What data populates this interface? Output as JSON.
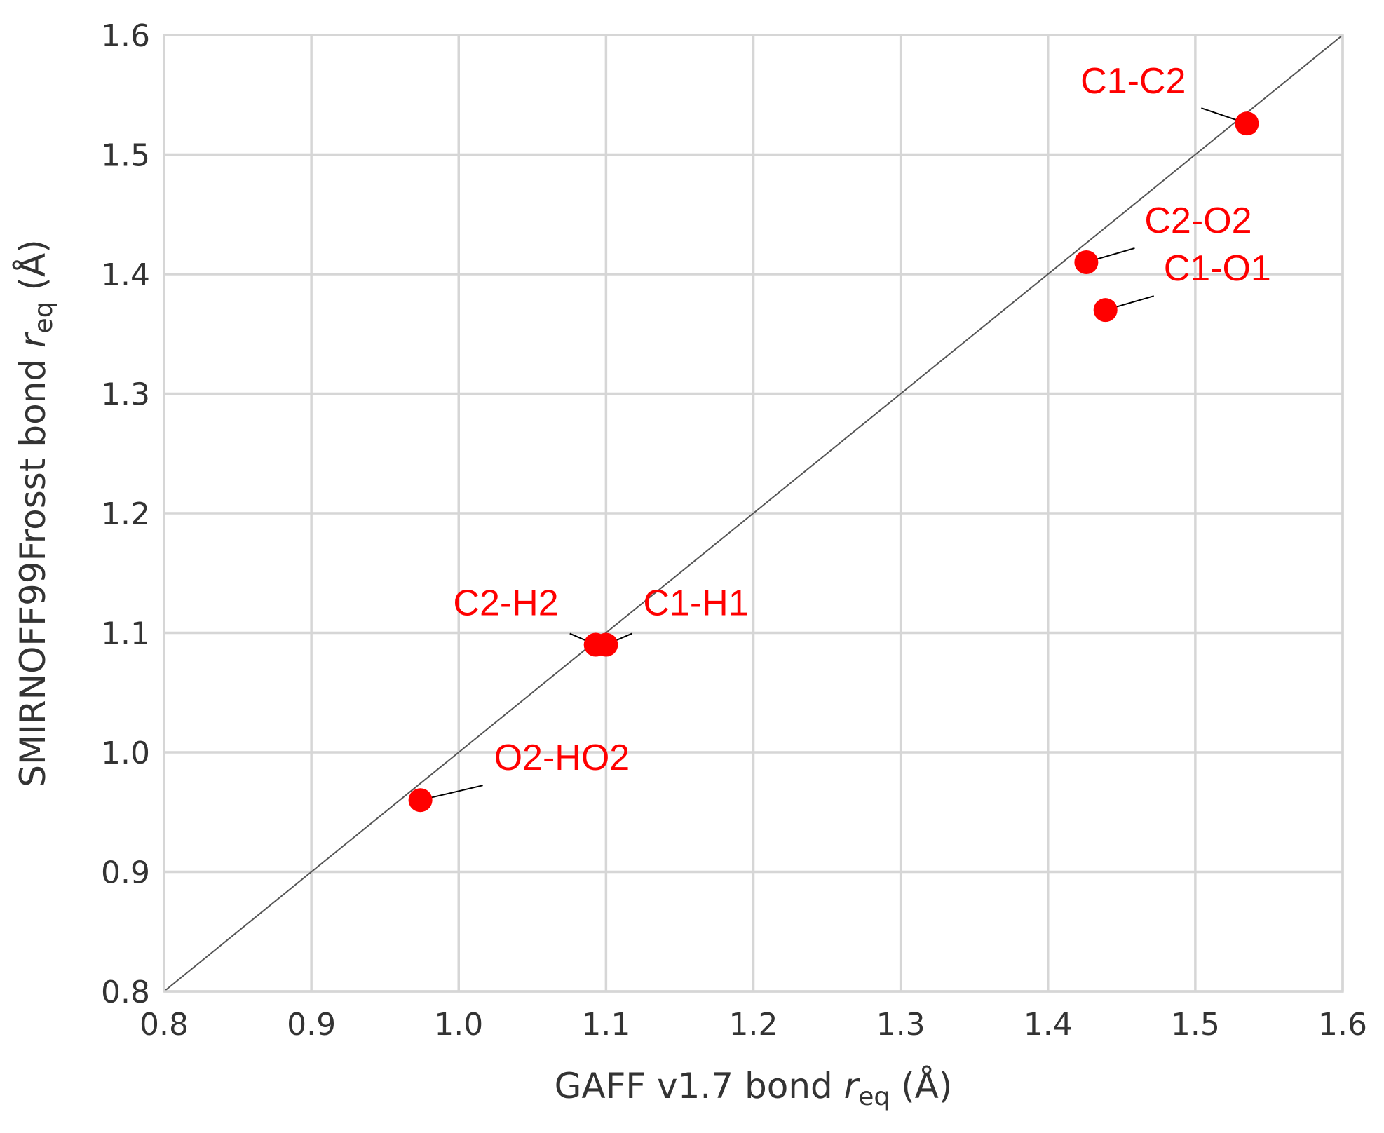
{
  "chart_data": {
    "type": "scatter",
    "xlabel": {
      "prefix": "GAFF v1.7 bond ",
      "symbol": "r",
      "subscript": "eq",
      "suffix": " (Å)"
    },
    "ylabel": {
      "prefix": "SMIRNOFF99Frosst bond ",
      "symbol": "r",
      "subscript": "eq",
      "suffix": " (Å)"
    },
    "xlim": [
      0.8,
      1.6
    ],
    "ylim": [
      0.8,
      1.6
    ],
    "xticks": [
      0.8,
      0.9,
      1.0,
      1.1,
      1.2,
      1.3,
      1.4,
      1.5,
      1.6
    ],
    "yticks": [
      0.8,
      0.9,
      1.0,
      1.1,
      1.2,
      1.3,
      1.4,
      1.5,
      1.6
    ],
    "xtick_labels": [
      "0.8",
      "0.9",
      "1.0",
      "1.1",
      "1.2",
      "1.3",
      "1.4",
      "1.5",
      "1.6"
    ],
    "ytick_labels": [
      "0.8",
      "0.9",
      "1.0",
      "1.1",
      "1.2",
      "1.3",
      "1.4",
      "1.5",
      "1.6"
    ],
    "grid": true,
    "identity_line": true,
    "marker_color": "#ff0000",
    "label_color": "#ff0000",
    "identity_line_color": "#555555",
    "grid_color": "#d6d6d6",
    "points": [
      {
        "label": "C1-C2",
        "x": 1.535,
        "y": 1.526
      },
      {
        "label": "C2-O2",
        "x": 1.426,
        "y": 1.41
      },
      {
        "label": "C1-O1",
        "x": 1.439,
        "y": 1.37
      },
      {
        "label": "C2-H2",
        "x": 1.093,
        "y": 1.09
      },
      {
        "label": "C1-H1",
        "x": 1.1,
        "y": 1.09
      },
      {
        "label": "O2-HO2",
        "x": 0.974,
        "y": 0.96
      }
    ]
  }
}
